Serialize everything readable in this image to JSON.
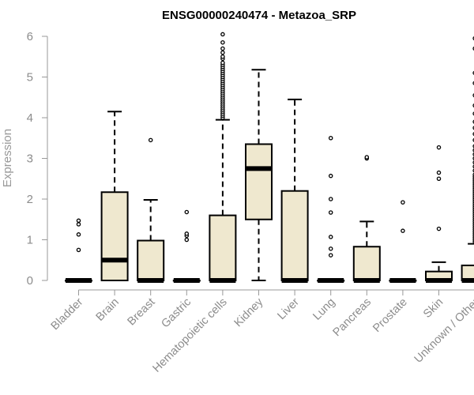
{
  "chart_data": {
    "type": "box",
    "title": "ENSG00000240474 - Metazoa_SRP",
    "xlabel": "",
    "ylabel": "Expression",
    "ylim": [
      0,
      6
    ],
    "yticks": [
      0,
      1,
      2,
      3,
      4,
      5,
      6
    ],
    "grid": false,
    "legend": "none",
    "colors": {
      "box_fill": "#efe8cf",
      "box_stroke": "#000000",
      "axis": "#999999",
      "text": "#8c8c8c"
    },
    "categories": [
      "Bladder",
      "Brain",
      "Breast",
      "Gastric",
      "Hematopoietic cells",
      "Kidney",
      "Liver",
      "Lung",
      "Pancreas",
      "Prostate",
      "Skin",
      "Unknown / Other"
    ],
    "boxes": [
      {
        "q1": 0,
        "median": 0,
        "q3": 0,
        "lower": 0,
        "upper": 0,
        "outliers": [
          0.75,
          1.13,
          1.38,
          1.47
        ]
      },
      {
        "q1": 0,
        "median": 0.5,
        "q3": 2.17,
        "lower": 0,
        "upper": 4.15,
        "outliers": []
      },
      {
        "q1": 0,
        "median": 0,
        "q3": 0.98,
        "lower": 0,
        "upper": 1.98,
        "outliers": [
          3.45
        ]
      },
      {
        "q1": 0,
        "median": 0,
        "q3": 0,
        "lower": 0,
        "upper": 0,
        "outliers": [
          1.0,
          1.1,
          1.15,
          1.68
        ]
      },
      {
        "q1": 0,
        "median": 0,
        "q3": 1.6,
        "lower": 0,
        "upper": 3.95,
        "outliers": [
          4.0,
          4.05,
          4.1,
          4.15,
          4.2,
          4.25,
          4.3,
          4.35,
          4.4,
          4.45,
          4.5,
          4.55,
          4.6,
          4.65,
          4.7,
          4.75,
          4.8,
          4.85,
          4.9,
          4.95,
          5.0,
          5.05,
          5.1,
          5.15,
          5.2,
          5.25,
          5.3,
          5.35,
          5.45,
          5.5,
          5.6,
          5.7,
          5.85,
          6.05
        ]
      },
      {
        "q1": 1.5,
        "median": 2.75,
        "q3": 3.35,
        "lower": 0,
        "upper": 5.18,
        "outliers": []
      },
      {
        "q1": 0,
        "median": 0,
        "q3": 2.2,
        "lower": 0,
        "upper": 4.45,
        "outliers": []
      },
      {
        "q1": 0,
        "median": 0,
        "q3": 0,
        "lower": 0,
        "upper": 0,
        "outliers": [
          0.62,
          0.78,
          1.07,
          1.67,
          2.0,
          2.57,
          3.5
        ]
      },
      {
        "q1": 0,
        "median": 0,
        "q3": 0.83,
        "lower": 0,
        "upper": 1.45,
        "outliers": [
          3.0,
          3.03
        ]
      },
      {
        "q1": 0,
        "median": 0,
        "q3": 0,
        "lower": 0,
        "upper": 0,
        "outliers": [
          1.22,
          1.92
        ]
      },
      {
        "q1": 0,
        "median": 0,
        "q3": 0.22,
        "lower": 0,
        "upper": 0.45,
        "outliers": [
          1.27,
          2.5,
          2.65,
          3.27
        ]
      },
      {
        "q1": 0,
        "median": 0,
        "q3": 0.37,
        "lower": 0,
        "upper": 0.9,
        "outliers": [
          0.95,
          1.0,
          1.05,
          1.1,
          1.15,
          1.2,
          1.25,
          1.3,
          1.35,
          1.4,
          1.45,
          1.5,
          1.55,
          1.6,
          1.65,
          1.7,
          1.75,
          1.8,
          1.85,
          1.9,
          1.95,
          2.0,
          2.05,
          2.1,
          2.15,
          2.2,
          2.25,
          2.3,
          2.35,
          2.4,
          2.45,
          2.5,
          2.55,
          2.6,
          2.7,
          2.8,
          2.9,
          3.0,
          3.1,
          3.2,
          3.3,
          3.45,
          3.6,
          3.75,
          3.9,
          4.1,
          4.3,
          4.55,
          4.85,
          5.1,
          5.7,
          5.95
        ]
      }
    ]
  }
}
